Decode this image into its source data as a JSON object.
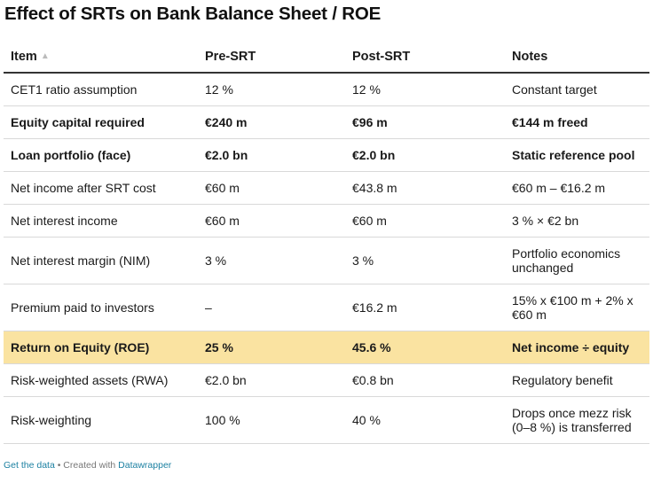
{
  "title": "Effect of SRTs on Bank Balance Sheet / ROE",
  "chart_data": {
    "type": "table",
    "columns": [
      "Item",
      "Pre-SRT",
      "Post-SRT",
      "Notes"
    ],
    "sort_indicator": "▲",
    "rows": [
      {
        "cells": [
          "CET1 ratio assumption",
          "12 %",
          "12 %",
          "Constant target"
        ],
        "bold": false,
        "highlight": false
      },
      {
        "cells": [
          "Equity capital required",
          "€240 m",
          "€96 m",
          "€144 m freed"
        ],
        "bold": true,
        "highlight": false
      },
      {
        "cells": [
          "Loan portfolio (face)",
          "€2.0 bn",
          "€2.0 bn",
          "Static reference pool"
        ],
        "bold": true,
        "highlight": false
      },
      {
        "cells": [
          "Net income after SRT cost",
          "€60 m",
          "€43.8 m",
          "€60 m – €16.2 m"
        ],
        "bold": false,
        "highlight": false
      },
      {
        "cells": [
          "Net interest income",
          "€60 m",
          "€60 m",
          "3 % × €2 bn"
        ],
        "bold": false,
        "highlight": false
      },
      {
        "cells": [
          "Net interest margin (NIM)",
          "3 %",
          "3 %",
          "Portfolio economics unchanged"
        ],
        "bold": false,
        "highlight": false
      },
      {
        "cells": [
          "Premium paid to investors",
          "–",
          "€16.2 m",
          "15% x €100 m + 2% x €60 m"
        ],
        "bold": false,
        "highlight": false
      },
      {
        "cells": [
          "Return on Equity (ROE)",
          "25 %",
          "45.6 %",
          "Net income ÷ equity"
        ],
        "bold": true,
        "highlight": true
      },
      {
        "cells": [
          "Risk-weighted assets (RWA)",
          "€2.0 bn",
          "€0.8 bn",
          "Regulatory benefit"
        ],
        "bold": false,
        "highlight": false
      },
      {
        "cells": [
          "Risk-weighting",
          "100 %",
          "40 %",
          "Drops once mezz risk (0–8 %) is transferred"
        ],
        "bold": false,
        "highlight": false
      }
    ],
    "highlight_color": "#fae3a1"
  },
  "footer": {
    "get_data": "Get the data",
    "separator": " • Created with ",
    "tool": "Datawrapper"
  }
}
